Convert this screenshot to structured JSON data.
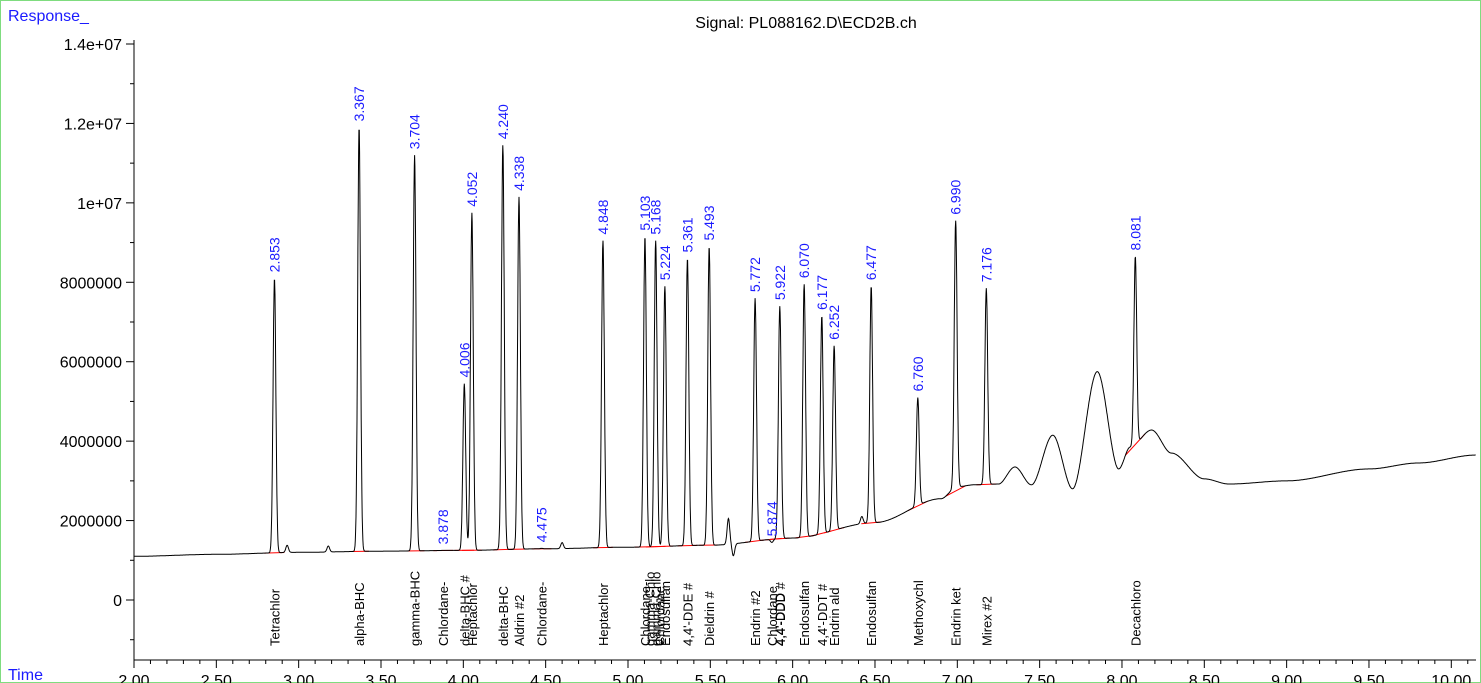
{
  "chart_data": {
    "type": "line",
    "title": "Signal: PL088162.D\\ECD2B.ch",
    "ylabel": "Response_",
    "xlabel": "Time",
    "xlim": [
      2.0,
      10.15
    ],
    "ylim": [
      -1300000,
      14500000
    ],
    "x_ticks": [
      2.0,
      2.5,
      3.0,
      3.5,
      4.0,
      4.5,
      5.0,
      5.5,
      6.0,
      6.5,
      7.0,
      7.5,
      8.0,
      8.5,
      9.0,
      9.5,
      10.0
    ],
    "x_tick_labels": [
      "2.00",
      "2.50",
      "3.00",
      "3.50",
      "4.00",
      "4.50",
      "5.00",
      "5.50",
      "6.00",
      "6.50",
      "7.00",
      "7.50",
      "8.00",
      "8.50",
      "9.00",
      "9.50",
      "10.00"
    ],
    "y_ticks": [
      0,
      2000000,
      4000000,
      6000000,
      8000000,
      10000000,
      12000000,
      14000000
    ],
    "y_tick_labels": [
      "0",
      "2000000",
      "4000000",
      "6000000",
      "8000000",
      "1e+07",
      "1.2e+07",
      "1.4e+07"
    ],
    "grid": false,
    "baseline_points": [
      [
        2.0,
        1100000
      ],
      [
        2.5,
        1150000
      ],
      [
        3.0,
        1200000
      ],
      [
        3.5,
        1230000
      ],
      [
        4.0,
        1250000
      ],
      [
        4.5,
        1290000
      ],
      [
        5.0,
        1330000
      ],
      [
        5.5,
        1380000
      ],
      [
        6.0,
        1560000
      ],
      [
        6.5,
        1950000
      ],
      [
        6.9,
        2550000
      ],
      [
        7.0,
        2850000
      ],
      [
        7.1,
        2900000
      ],
      [
        7.25,
        2920000
      ],
      [
        7.35,
        3350000
      ],
      [
        7.45,
        2900000
      ],
      [
        7.58,
        4150000
      ],
      [
        7.7,
        2800000
      ],
      [
        7.85,
        5750000
      ],
      [
        7.98,
        3300000
      ],
      [
        8.05,
        3850000
      ],
      [
        8.18,
        4280000
      ],
      [
        8.3,
        3700000
      ],
      [
        8.5,
        3050000
      ],
      [
        8.65,
        2920000
      ],
      [
        9.0,
        3000000
      ],
      [
        9.5,
        3300000
      ],
      [
        9.8,
        3450000
      ],
      [
        10.15,
        3650000
      ]
    ],
    "minor_peaks": [
      [
        2.93,
        180000
      ],
      [
        3.18,
        150000
      ],
      [
        4.6,
        150000
      ],
      [
        5.61,
        650000
      ],
      [
        6.42,
        180000
      ],
      [
        5.64,
        -300000
      ]
    ],
    "peaks": [
      {
        "rt": "2.853",
        "x": 2.853,
        "y": 8100000,
        "name": "Tetrachlor"
      },
      {
        "rt": "3.367",
        "x": 3.367,
        "y": 11900000,
        "name": "alpha-BHC"
      },
      {
        "rt": "3.704",
        "x": 3.704,
        "y": 11200000,
        "name": "gamma-BHC"
      },
      {
        "rt": "3.878",
        "x": 3.878,
        "y": 1250000,
        "name": "Chlordane-"
      },
      {
        "rt": "4.006",
        "x": 4.006,
        "y": 5450000,
        "name": "delta-BHC #"
      },
      {
        "rt": "4.052",
        "x": 4.052,
        "y": 9750000,
        "name": "Heptachlor"
      },
      {
        "rt": "4.240",
        "x": 4.24,
        "y": 11450000,
        "name": "delta-BHC"
      },
      {
        "rt": "4.338",
        "x": 4.338,
        "y": 10150000,
        "name": "Aldrin #2"
      },
      {
        "rt": "4.475",
        "x": 4.475,
        "y": 1300000,
        "name": "Chlordane-"
      },
      {
        "rt": "4.848",
        "x": 4.848,
        "y": 9050000,
        "name": "Heptachlor"
      },
      {
        "rt": "5.103",
        "x": 5.103,
        "y": 9150000,
        "name": "Chlordane-"
      },
      {
        "rt": "5.168",
        "x": 5.168,
        "y": 9050000,
        "name": "gamma-Chlo"
      },
      {
        "rt": "5.224",
        "x": 5.224,
        "y": 7900000,
        "name": "Endosulfan"
      },
      {
        "rt": "5.361",
        "x": 5.361,
        "y": 8600000,
        "name": "4,4'-DDE #"
      },
      {
        "rt": "5.493",
        "x": 5.493,
        "y": 8900000,
        "name": "Dieldrin #"
      },
      {
        "rt": "5.772",
        "x": 5.772,
        "y": 7600000,
        "name": "Endrin #2"
      },
      {
        "rt": "5.874",
        "x": 5.874,
        "y": 1450000,
        "name": "Chlordane"
      },
      {
        "rt": "5.922",
        "x": 5.922,
        "y": 7400000,
        "name": "4,4'-DDD #"
      },
      {
        "rt": "6.070",
        "x": 6.07,
        "y": 7950000,
        "name": "Endosulfan"
      },
      {
        "rt": "6.177",
        "x": 6.177,
        "y": 7150000,
        "name": "4,4'-DDT #"
      },
      {
        "rt": "6.252",
        "x": 6.252,
        "y": 6400000,
        "name": "Endrin ald"
      },
      {
        "rt": "6.477",
        "x": 6.477,
        "y": 7900000,
        "name": "Endosulfan"
      },
      {
        "rt": "6.760",
        "x": 6.76,
        "y": 5100000,
        "name": "Methoxychl"
      },
      {
        "rt": "6.990",
        "x": 6.99,
        "y": 9550000,
        "name": "Endrin ket"
      },
      {
        "rt": "7.176",
        "x": 7.176,
        "y": 7850000,
        "name": "Mirex #2"
      },
      {
        "rt": "8.081",
        "x": 8.081,
        "y": 8650000,
        "name": "Decachloro"
      }
    ],
    "extra_labels": [
      {
        "x": 5.13,
        "name": "gamma-Chlo"
      },
      {
        "x": 5.19,
        "name": "Chlordane"
      },
      {
        "x": 5.92,
        "name": "4,4'-DDD"
      }
    ],
    "colors": {
      "signal": "#000000",
      "baseline": "#ff0000",
      "retention_time": "#1a1aff",
      "frame": "#7fdc7f"
    }
  }
}
